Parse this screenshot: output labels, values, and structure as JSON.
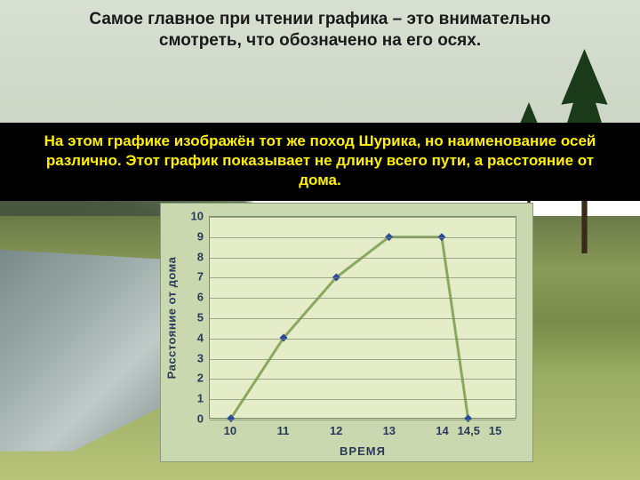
{
  "title": "Самое главное при чтении графика – это внимательно смотреть, что обозначено на его осях.",
  "band_text": "На этом графике изображён тот же поход Шурика, но наименование осей различно. Этот график показывает не длину всего пути, а расстояние от дома.",
  "chart": {
    "type": "line",
    "xlabel": "ВРЕМЯ",
    "ylabel": "Расстояние от дома",
    "y_ticks": [
      0,
      1,
      2,
      3,
      4,
      5,
      6,
      7,
      8,
      9,
      10
    ],
    "x_ticks": [
      "10",
      "11",
      "12",
      "13",
      "14",
      "14,5",
      "15"
    ],
    "x_positions": [
      10,
      11,
      12,
      13,
      14,
      14.5,
      15
    ],
    "xlim": [
      9.6,
      15.4
    ],
    "ylim": [
      0,
      10
    ],
    "data_x": [
      10,
      11,
      12,
      13,
      14,
      14.5
    ],
    "data_y": [
      0,
      4,
      7,
      9,
      9,
      0
    ],
    "line_color": "#8aa860",
    "line_width": 3,
    "marker_color": "#2a4a9a",
    "marker_size": 9,
    "plot_bg": "#e4ecc8",
    "chart_bg": "#cad8b0",
    "grid_color": "#7a8a6a",
    "tick_font_color": "#2a3a5a",
    "tick_font_size": 13
  },
  "colors": {
    "band_bg": "#000000",
    "band_text": "#fff000",
    "title_text": "#1a1a1a"
  }
}
